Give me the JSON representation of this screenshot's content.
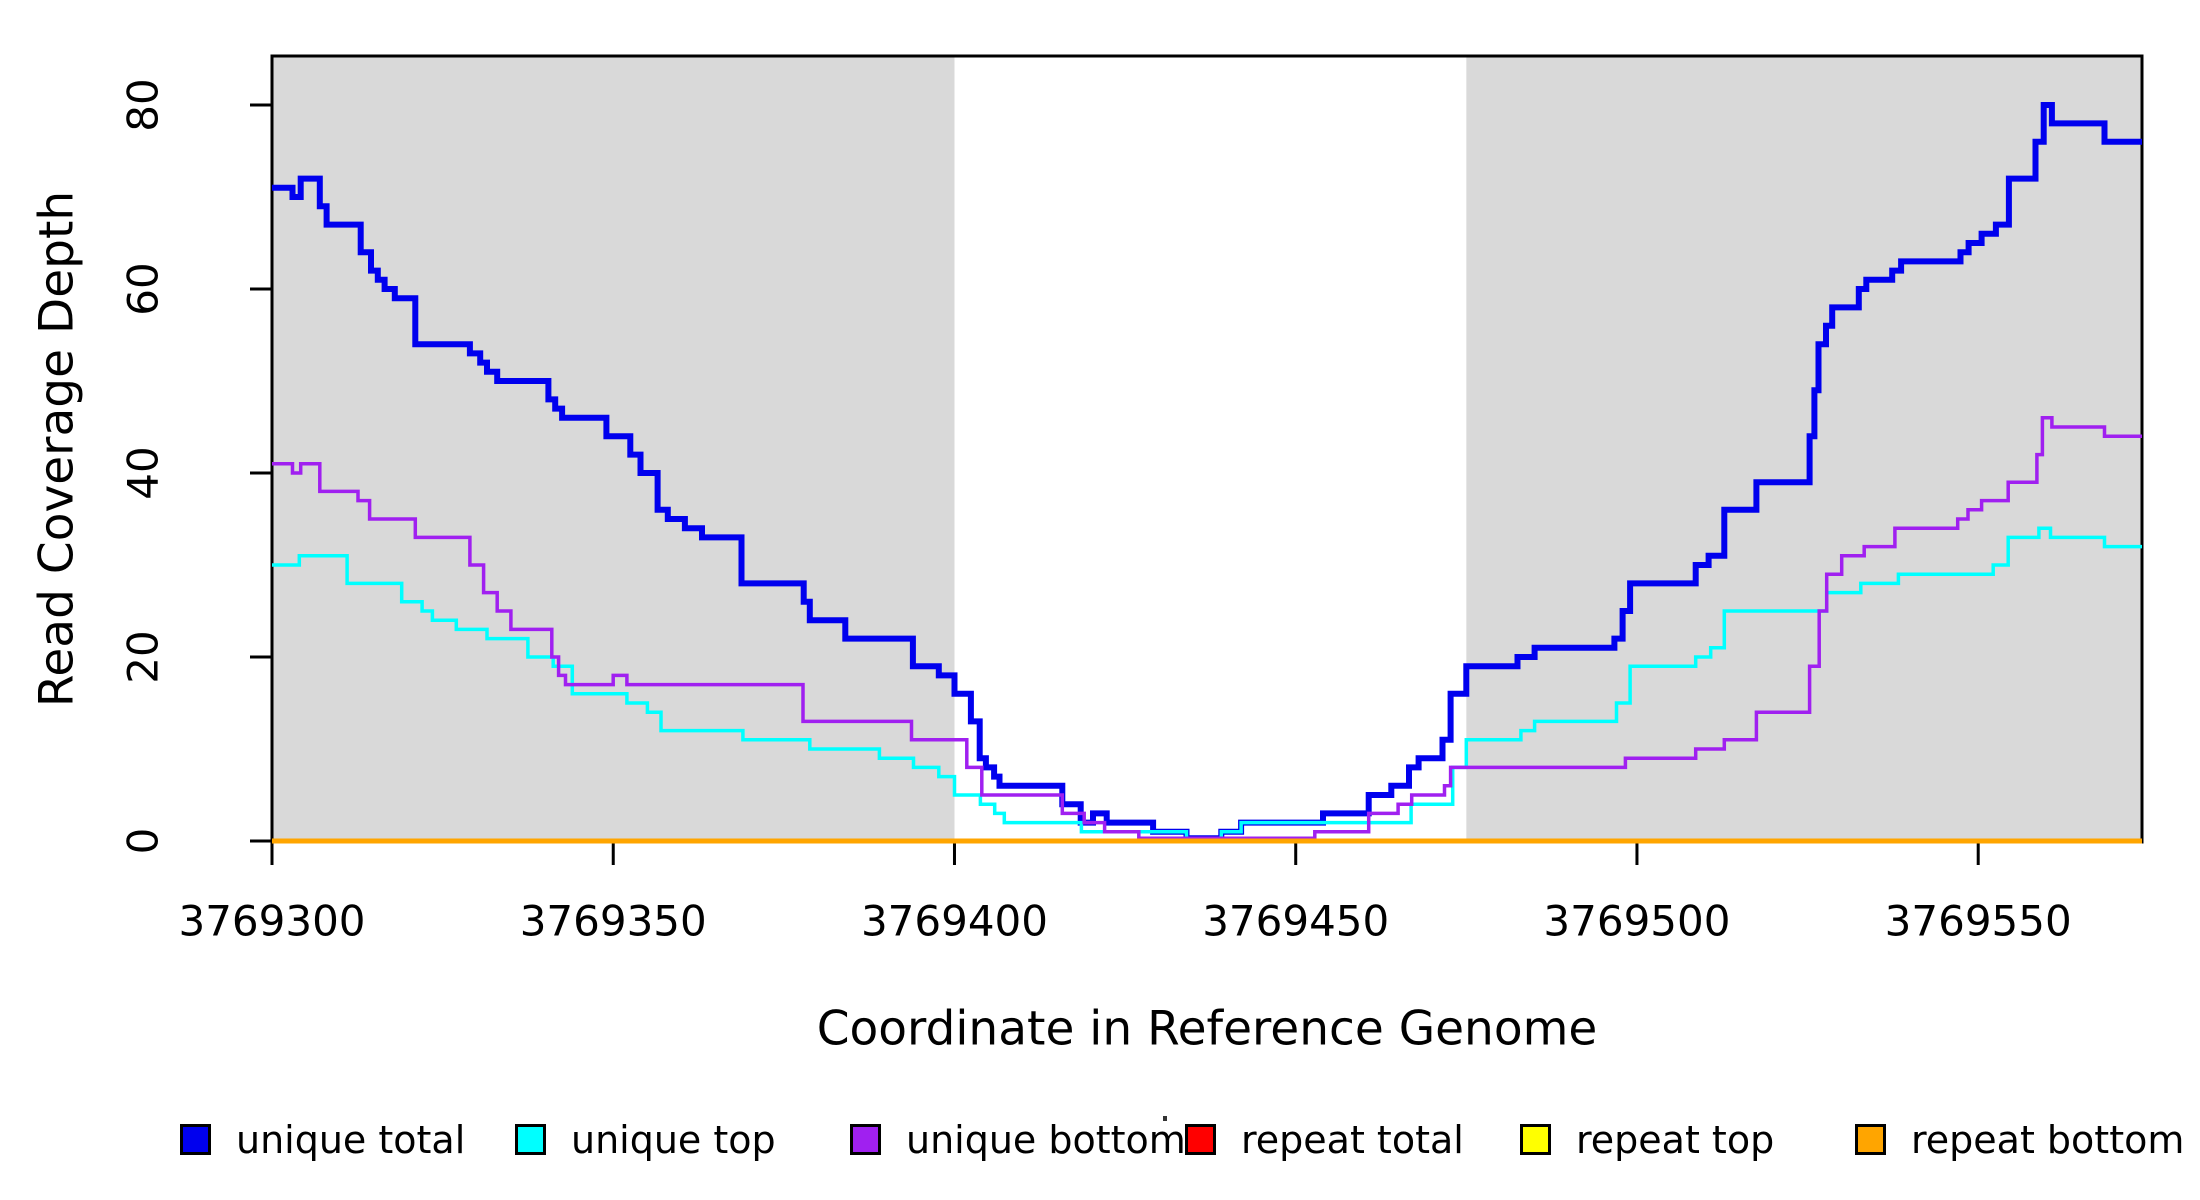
{
  "figure": {
    "x_axis_title": "Coordinate in Reference Genome",
    "y_axis_title": "Read Coverage Depth"
  },
  "axes": {
    "x": {
      "range": [
        3769300,
        3769574
      ],
      "ticks": [
        {
          "v": 3769300,
          "label": "3769300"
        },
        {
          "v": 3769350,
          "label": "3769350"
        },
        {
          "v": 3769400,
          "label": "3769400"
        },
        {
          "v": 3769450,
          "label": "3769450"
        },
        {
          "v": 3769500,
          "label": "3769500"
        },
        {
          "v": 3769550,
          "label": "3769550"
        }
      ]
    },
    "y": {
      "range": [
        0,
        85
      ],
      "ticks": [
        {
          "v": 0,
          "label": "0"
        },
        {
          "v": 20,
          "label": "20"
        },
        {
          "v": 40,
          "label": "40"
        },
        {
          "v": 60,
          "label": "60"
        },
        {
          "v": 80,
          "label": "80"
        }
      ]
    }
  },
  "colors": {
    "shading": "#D9D9D9",
    "unique_total": "#0000EE",
    "unique_top": "#00FFFF",
    "unique_bottom": "#A020F0",
    "repeat_total": "#FF0000",
    "repeat_top": "#FFFF00",
    "repeat_bottom": "#FFA500"
  },
  "legend": {
    "items": [
      {
        "label": "unique total",
        "color": "#0000EE"
      },
      {
        "label": "unique top",
        "color": "#00FFFF"
      },
      {
        "label": "unique bottom",
        "color": "#A020F0"
      },
      {
        "label": "repeat total",
        "color": "#FF0000"
      },
      {
        "label": "repeat top",
        "color": "#FFFF00"
      },
      {
        "label": "repeat bottom",
        "color": "#FFA500"
      }
    ]
  },
  "chart_data": {
    "type": "line",
    "subtype": "step",
    "title": "",
    "xlabel": "Coordinate in Reference Genome",
    "ylabel": "Read Coverage Depth",
    "xlim": [
      3769300,
      3769574
    ],
    "ylim": [
      0,
      85
    ],
    "grid": false,
    "legend_position": "bottom",
    "shaded_regions": [
      {
        "x0": 3769300,
        "x1": 3769400,
        "color": "#D9D9D9"
      },
      {
        "x0": 3769475,
        "x1": 3769574,
        "color": "#D9D9D9"
      }
    ],
    "series": [
      {
        "name": "unique total",
        "color": "#0000EE",
        "width": 6,
        "points": [
          [
            3769300,
            71
          ],
          [
            3769303,
            70
          ],
          [
            3769304.2,
            72
          ],
          [
            3769307,
            69
          ],
          [
            3769308,
            67
          ],
          [
            3769313,
            64
          ],
          [
            3769314.5,
            62
          ],
          [
            3769315.5,
            61
          ],
          [
            3769316.5,
            60
          ],
          [
            3769318,
            59
          ],
          [
            3769321,
            54
          ],
          [
            3769329,
            53
          ],
          [
            3769330.5,
            52
          ],
          [
            3769331.5,
            51
          ],
          [
            3769333,
            50
          ],
          [
            3769340.5,
            48
          ],
          [
            3769341.5,
            47
          ],
          [
            3769342.5,
            46
          ],
          [
            3769349,
            44
          ],
          [
            3769352.5,
            42
          ],
          [
            3769354,
            40
          ],
          [
            3769356.5,
            36
          ],
          [
            3769358,
            35
          ],
          [
            3769360.5,
            34
          ],
          [
            3769363,
            33
          ],
          [
            3769368.8,
            28
          ],
          [
            3769377.9,
            26
          ],
          [
            3769378.8,
            24
          ],
          [
            3769384,
            22
          ],
          [
            3769393.9,
            19
          ],
          [
            3769397.7,
            18
          ],
          [
            3769400,
            16
          ],
          [
            3769402.4,
            13
          ],
          [
            3769403.7,
            9
          ],
          [
            3769404.6,
            8
          ],
          [
            3769405.8,
            7
          ],
          [
            3769406.6,
            6
          ],
          [
            3769415.8,
            4
          ],
          [
            3769418.5,
            2
          ],
          [
            3769420.3,
            3
          ],
          [
            3769422.3,
            2
          ],
          [
            3769429.1,
            1
          ],
          [
            3769434,
            0.3
          ],
          [
            3769439.1,
            1
          ],
          [
            3769442,
            2
          ],
          [
            3769454,
            3
          ],
          [
            3769460.7,
            5
          ],
          [
            3769464,
            6
          ],
          [
            3769466.6,
            8
          ],
          [
            3769468,
            9
          ],
          [
            3769471.5,
            11
          ],
          [
            3769472.7,
            16
          ],
          [
            3769475,
            19
          ],
          [
            3769482.5,
            20
          ],
          [
            3769485,
            21
          ],
          [
            3769496.7,
            22
          ],
          [
            3769497.9,
            25
          ],
          [
            3769499,
            28
          ],
          [
            3769508.6,
            30
          ],
          [
            3769510.5,
            31
          ],
          [
            3769512.8,
            36
          ],
          [
            3769517.5,
            39
          ],
          [
            3769525.3,
            44
          ],
          [
            3769526,
            49
          ],
          [
            3769526.6,
            54
          ],
          [
            3769527.7,
            56
          ],
          [
            3769528.6,
            58
          ],
          [
            3769532.5,
            60
          ],
          [
            3769533.6,
            61
          ],
          [
            3769537.4,
            62
          ],
          [
            3769538.7,
            63
          ],
          [
            3769547.4,
            64
          ],
          [
            3769548.6,
            65
          ],
          [
            3769550.5,
            66
          ],
          [
            3769552.6,
            67
          ],
          [
            3769554.5,
            72
          ],
          [
            3769558.4,
            76
          ],
          [
            3769559.6,
            80
          ],
          [
            3769560.8,
            78
          ],
          [
            3769568.5,
            76
          ]
        ]
      },
      {
        "name": "unique top",
        "color": "#00FFFF",
        "width": 3.5,
        "points": [
          [
            3769300,
            30
          ],
          [
            3769304,
            31
          ],
          [
            3769311,
            28
          ],
          [
            3769319,
            26
          ],
          [
            3769322,
            25
          ],
          [
            3769323.5,
            24
          ],
          [
            3769327,
            23
          ],
          [
            3769331.5,
            22
          ],
          [
            3769337.5,
            20
          ],
          [
            3769341.2,
            19
          ],
          [
            3769344,
            16
          ],
          [
            3769352,
            15
          ],
          [
            3769355,
            14
          ],
          [
            3769357,
            12
          ],
          [
            3769369,
            11
          ],
          [
            3769378.8,
            10
          ],
          [
            3769389,
            9
          ],
          [
            3769394,
            8
          ],
          [
            3769397.7,
            7
          ],
          [
            3769400,
            5
          ],
          [
            3769403.8,
            4
          ],
          [
            3769405.9,
            3
          ],
          [
            3769407.3,
            2
          ],
          [
            3769418.6,
            1
          ],
          [
            3769434,
            0.3
          ],
          [
            3769439.1,
            1
          ],
          [
            3769442,
            2
          ],
          [
            3769466.9,
            4
          ],
          [
            3769473,
            8
          ],
          [
            3769475,
            11
          ],
          [
            3769483,
            12
          ],
          [
            3769485,
            13
          ],
          [
            3769497,
            15
          ],
          [
            3769499,
            19
          ],
          [
            3769508.6,
            20
          ],
          [
            3769510.8,
            21
          ],
          [
            3769512.8,
            25
          ],
          [
            3769527.8,
            27
          ],
          [
            3769532.8,
            28
          ],
          [
            3769538.3,
            29
          ],
          [
            3769552.2,
            30
          ],
          [
            3769554.4,
            33
          ],
          [
            3769558.9,
            34
          ],
          [
            3769560.6,
            33
          ],
          [
            3769568.5,
            32
          ]
        ]
      },
      {
        "name": "unique bottom",
        "color": "#A020F0",
        "width": 3.5,
        "points": [
          [
            3769300,
            41
          ],
          [
            3769303,
            40
          ],
          [
            3769304.2,
            41
          ],
          [
            3769307,
            38
          ],
          [
            3769312.6,
            37
          ],
          [
            3769314.3,
            35
          ],
          [
            3769321,
            33
          ],
          [
            3769329,
            30
          ],
          [
            3769331,
            27
          ],
          [
            3769333,
            25
          ],
          [
            3769335,
            23
          ],
          [
            3769341,
            20
          ],
          [
            3769342,
            18
          ],
          [
            3769343,
            17
          ],
          [
            3769350,
            18
          ],
          [
            3769352,
            17
          ],
          [
            3769377.8,
            13
          ],
          [
            3769393.7,
            11
          ],
          [
            3769401.8,
            8
          ],
          [
            3769404,
            5
          ],
          [
            3769415.8,
            3
          ],
          [
            3769419,
            2
          ],
          [
            3769422,
            1
          ],
          [
            3769427,
            0.3
          ],
          [
            3769452.8,
            1
          ],
          [
            3769460.7,
            3
          ],
          [
            3769465,
            4
          ],
          [
            3769467,
            5
          ],
          [
            3769471.8,
            6
          ],
          [
            3769472.7,
            8
          ],
          [
            3769498.3,
            9
          ],
          [
            3769508.6,
            10
          ],
          [
            3769512.8,
            11
          ],
          [
            3769517.5,
            14
          ],
          [
            3769525.3,
            19
          ],
          [
            3769526.7,
            25
          ],
          [
            3769527.8,
            29
          ],
          [
            3769530,
            31
          ],
          [
            3769533.3,
            32
          ],
          [
            3769537.8,
            34
          ],
          [
            3769547,
            35
          ],
          [
            3769548.5,
            36
          ],
          [
            3769550.5,
            37
          ],
          [
            3769554.4,
            39
          ],
          [
            3769558.6,
            42
          ],
          [
            3769559.4,
            46
          ],
          [
            3769560.8,
            45
          ],
          [
            3769568.5,
            44
          ]
        ]
      },
      {
        "name": "repeat total",
        "color": "#FF0000",
        "width": 3.5,
        "points": [
          [
            3769300,
            0
          ]
        ]
      },
      {
        "name": "repeat top",
        "color": "#FFFF00",
        "width": 3.5,
        "points": [
          [
            3769300,
            0
          ]
        ]
      },
      {
        "name": "repeat bottom",
        "color": "#FFA500",
        "width": 5,
        "points": [
          [
            3769300,
            0
          ]
        ]
      }
    ]
  }
}
